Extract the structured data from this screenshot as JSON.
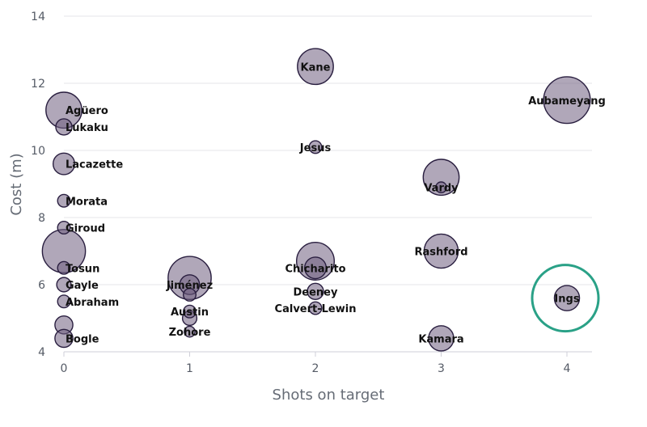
{
  "chart_data": {
    "type": "scatter",
    "title": "",
    "xlabel": "Shots on target",
    "ylabel": "Cost (m)",
    "xlim": [
      0,
      4.2
    ],
    "ylim": [
      4,
      14
    ],
    "xticks": [
      0,
      1,
      2,
      3,
      4
    ],
    "yticks": [
      4,
      6,
      8,
      10,
      12,
      14
    ],
    "grid": "horizontal",
    "points": [
      {
        "label": "Kane",
        "x": 2,
        "y": 12.5,
        "size": 1.0
      },
      {
        "label": "Aubameyang",
        "x": 4,
        "y": 11.5,
        "size": 1.3
      },
      {
        "label": "Agüero",
        "x": 0,
        "y": 11.2,
        "size": 1.0
      },
      {
        "label": "Lukaku",
        "x": 0,
        "y": 10.7,
        "size": 0.45
      },
      {
        "label": "Jesus",
        "x": 2,
        "y": 10.1,
        "size": 0.35
      },
      {
        "label": "Lacazette",
        "x": 0,
        "y": 9.6,
        "size": 0.6
      },
      {
        "label": "",
        "x": 3,
        "y": 9.2,
        "size": 1.0
      },
      {
        "label": "Vardy",
        "x": 3,
        "y": 8.9,
        "size": 0.3
      },
      {
        "label": "Morata",
        "x": 0,
        "y": 8.5,
        "size": 0.35
      },
      {
        "label": "Giroud",
        "x": 0,
        "y": 7.7,
        "size": 0.35
      },
      {
        "label": "Rashford",
        "x": 3,
        "y": 7.0,
        "size": 0.95
      },
      {
        "label": "",
        "x": 0,
        "y": 7.0,
        "size": 1.2
      },
      {
        "label": "",
        "x": 2,
        "y": 6.7,
        "size": 1.05
      },
      {
        "label": "Chicharito",
        "x": 2,
        "y": 6.5,
        "size": 0.6
      },
      {
        "label": "Tosun",
        "x": 0,
        "y": 6.5,
        "size": 0.35
      },
      {
        "label": "",
        "x": 1,
        "y": 6.2,
        "size": 1.2
      },
      {
        "label": "Jiménez",
        "x": 1,
        "y": 6.0,
        "size": 0.55
      },
      {
        "label": "Gayle",
        "x": 0,
        "y": 6.0,
        "size": 0.4
      },
      {
        "label": "Deeney",
        "x": 2,
        "y": 5.8,
        "size": 0.45
      },
      {
        "label": "",
        "x": 1,
        "y": 5.7,
        "size": 0.35
      },
      {
        "label": "Ings",
        "x": 4,
        "y": 5.6,
        "size": 0.7
      },
      {
        "label": "Austin",
        "x": 1,
        "y": 5.2,
        "size": 0.35
      },
      {
        "label": "Abraham",
        "x": 0,
        "y": 5.5,
        "size": 0.35
      },
      {
        "label": "Calvert-Lewin",
        "x": 2,
        "y": 5.3,
        "size": 0.35
      },
      {
        "label": "",
        "x": 1,
        "y": 5.0,
        "size": 0.4
      },
      {
        "label": "",
        "x": 0,
        "y": 4.8,
        "size": 0.5
      },
      {
        "label": "Zohore",
        "x": 1,
        "y": 4.6,
        "size": 0.3
      },
      {
        "label": "Kamara",
        "x": 3,
        "y": 4.4,
        "size": 0.7
      },
      {
        "label": "Bogle",
        "x": 0,
        "y": 4.4,
        "size": 0.5
      }
    ],
    "highlight": {
      "label": "Ings",
      "color": "#2aa187"
    }
  }
}
